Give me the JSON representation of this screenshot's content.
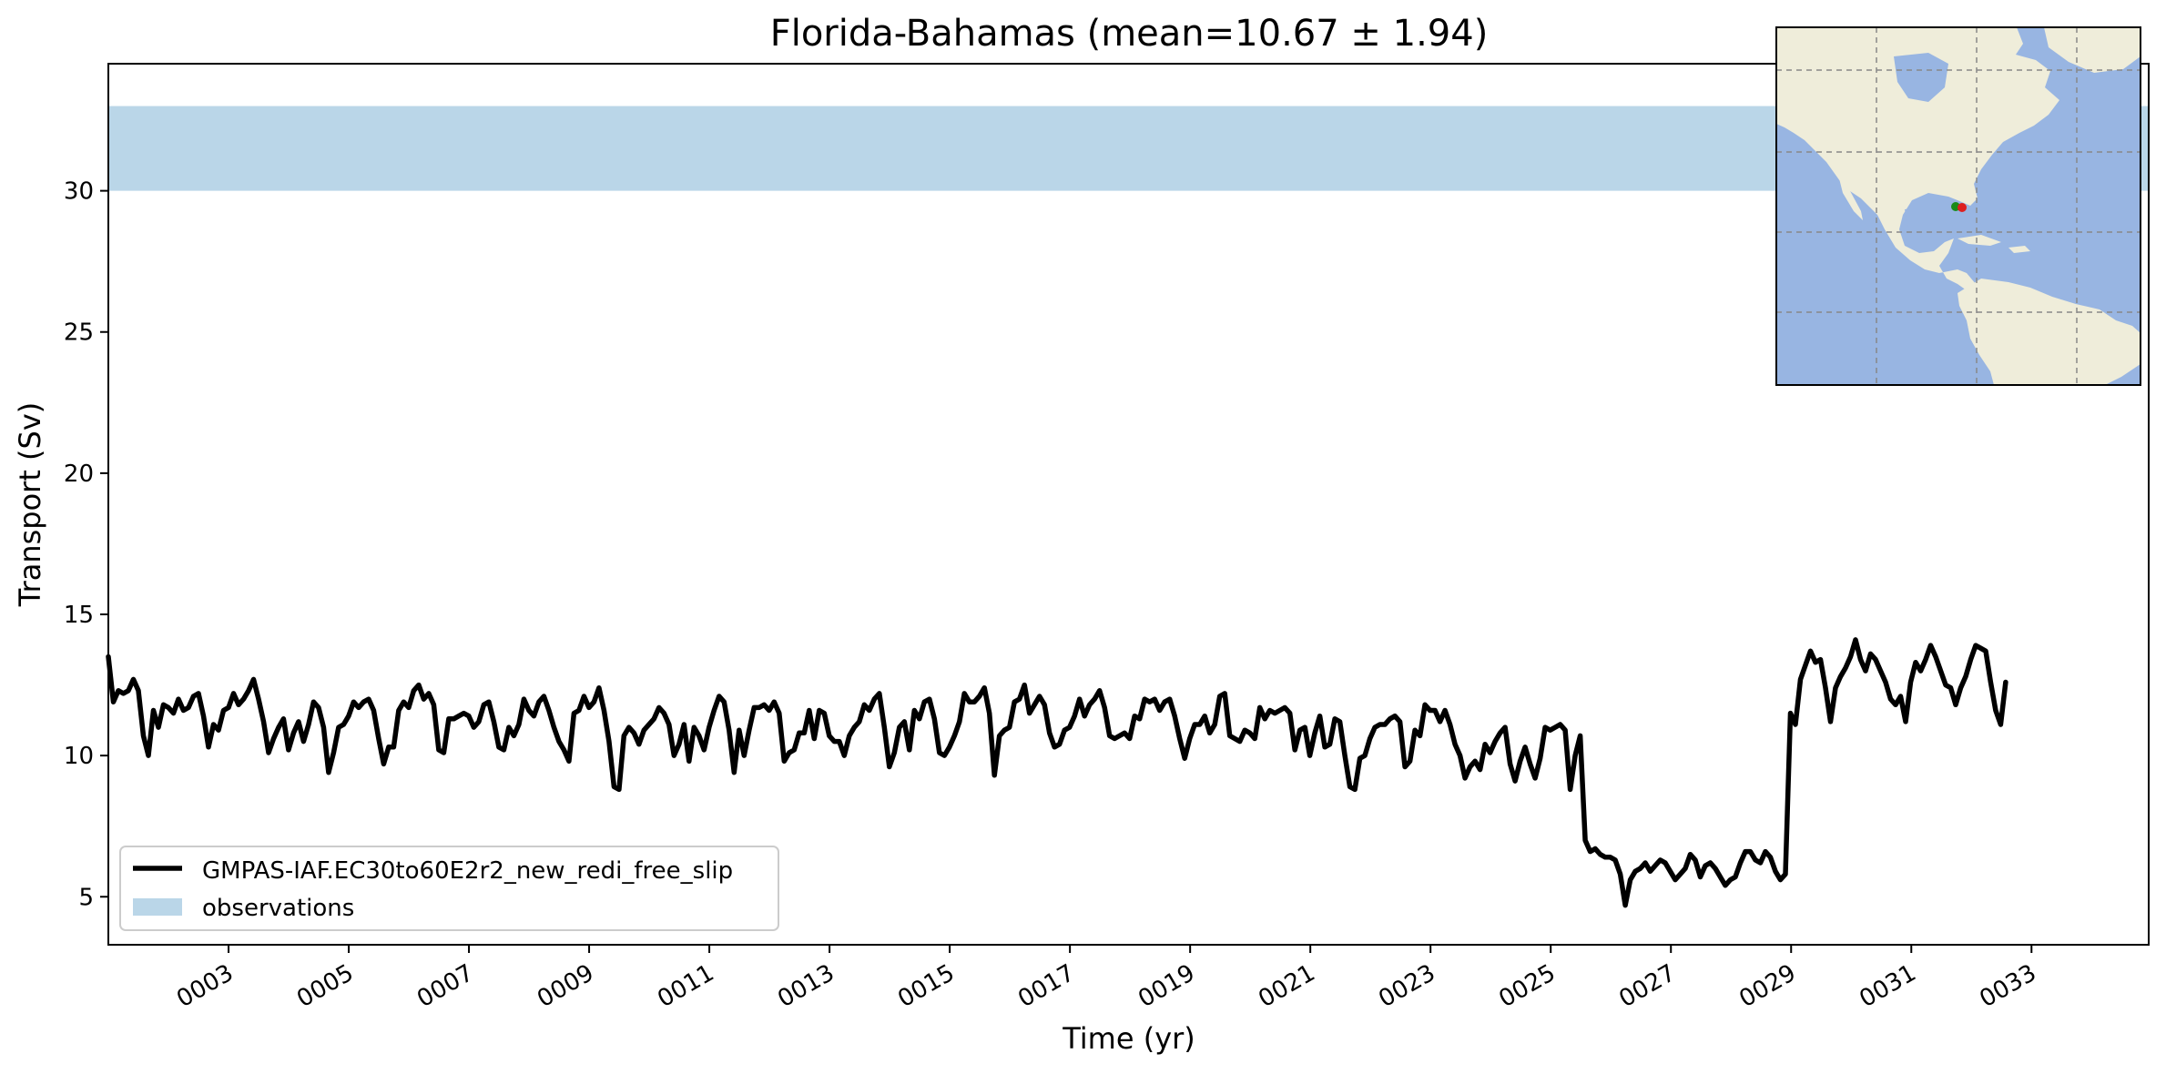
{
  "chart_data": {
    "type": "line",
    "title": "Florida-Bahamas (mean=10.67 ± 1.94)",
    "xlabel": "Time (yr)",
    "ylabel": "Transport (Sv)",
    "xlim": [
      1.0,
      34.95
    ],
    "ylim": [
      3.3,
      34.5
    ],
    "x_ticks": [
      3,
      5,
      7,
      9,
      11,
      13,
      15,
      17,
      19,
      21,
      23,
      25,
      27,
      29,
      31,
      33
    ],
    "x_tick_labels": [
      "0003",
      "0005",
      "0007",
      "0009",
      "0011",
      "0013",
      "0015",
      "0017",
      "0019",
      "0021",
      "0023",
      "0025",
      "0027",
      "0029",
      "0031",
      "0033"
    ],
    "y_ticks": [
      5,
      10,
      15,
      20,
      25,
      30
    ],
    "y_tick_labels": [
      "5",
      "10",
      "15",
      "20",
      "25",
      "30"
    ],
    "grid": false,
    "legend_position": "lower-left",
    "observations_band": {
      "name": "observations",
      "y_min": 30,
      "y_max": 33,
      "color": "#bad6e8"
    },
    "series": [
      {
        "name": "GMPAS-IAF.EC30to60E2r2_new_redi_free_slip",
        "color": "#000000",
        "x_start": 1.0,
        "x_step": 0.0833,
        "values": [
          13.5,
          11.9,
          12.3,
          12.2,
          12.3,
          12.7,
          12.3,
          10.7,
          10.0,
          11.6,
          11.0,
          11.8,
          11.7,
          11.5,
          12.0,
          11.6,
          11.7,
          12.1,
          12.2,
          11.4,
          10.3,
          11.1,
          10.9,
          11.6,
          11.7,
          12.2,
          11.8,
          12.0,
          12.3,
          12.7,
          12.0,
          11.2,
          10.1,
          10.6,
          11.0,
          11.3,
          10.2,
          10.8,
          11.2,
          10.5,
          11.1,
          11.9,
          11.7,
          11.0,
          9.4,
          10.1,
          11.0,
          11.1,
          11.4,
          11.9,
          11.7,
          11.9,
          12.0,
          11.6,
          10.6,
          9.7,
          10.3,
          10.3,
          11.6,
          11.9,
          11.7,
          12.3,
          12.5,
          12.0,
          12.2,
          11.8,
          10.2,
          10.1,
          11.3,
          11.3,
          11.4,
          11.5,
          11.4,
          11.0,
          11.2,
          11.8,
          11.9,
          11.2,
          10.3,
          10.2,
          11.0,
          10.7,
          11.1,
          12.0,
          11.6,
          11.4,
          11.9,
          12.1,
          11.6,
          11.0,
          10.5,
          10.2,
          9.8,
          11.5,
          11.6,
          12.1,
          11.7,
          11.9,
          12.4,
          11.6,
          10.5,
          8.9,
          8.8,
          10.7,
          11.0,
          10.8,
          10.4,
          10.9,
          11.1,
          11.3,
          11.7,
          11.5,
          11.1,
          10.0,
          10.4,
          11.1,
          9.8,
          11.0,
          10.7,
          10.2,
          11.0,
          11.6,
          12.1,
          11.9,
          10.9,
          9.4,
          10.9,
          10.0,
          10.9,
          11.7,
          11.7,
          11.8,
          11.6,
          11.9,
          11.5,
          9.8,
          10.1,
          10.2,
          10.8,
          10.8,
          11.6,
          10.6,
          11.6,
          11.5,
          10.7,
          10.5,
          10.5,
          10.0,
          10.7,
          11.0,
          11.2,
          11.8,
          11.6,
          12.0,
          12.2,
          11.0,
          9.6,
          10.1,
          11.0,
          11.2,
          10.2,
          11.6,
          11.3,
          11.9,
          12.0,
          11.3,
          10.1,
          10.0,
          10.3,
          10.7,
          11.2,
          12.2,
          11.9,
          11.9,
          12.1,
          12.4,
          11.5,
          9.3,
          10.7,
          10.9,
          11.0,
          11.9,
          12.0,
          12.5,
          11.5,
          11.8,
          12.1,
          11.8,
          10.8,
          10.3,
          10.4,
          10.9,
          11.0,
          11.4,
          12.0,
          11.4,
          11.8,
          12.0,
          12.3,
          11.7,
          10.7,
          10.6,
          10.7,
          10.8,
          10.6,
          11.4,
          11.3,
          12.0,
          11.9,
          12.0,
          11.6,
          11.9,
          12.0,
          11.4,
          10.6,
          9.9,
          10.6,
          11.1,
          11.1,
          11.4,
          10.8,
          11.1,
          12.1,
          12.2,
          10.7,
          10.6,
          10.5,
          10.9,
          10.8,
          10.6,
          11.7,
          11.3,
          11.6,
          11.5,
          11.6,
          11.7,
          11.5,
          10.2,
          10.9,
          11.0,
          10.0,
          10.8,
          11.4,
          10.3,
          10.4,
          11.3,
          11.2,
          10.0,
          8.9,
          8.8,
          9.9,
          10.0,
          10.6,
          11.0,
          11.1,
          11.1,
          11.3,
          11.4,
          11.2,
          9.6,
          9.8,
          10.9,
          10.7,
          11.8,
          11.6,
          11.6,
          11.2,
          11.6,
          11.1,
          10.4,
          10.0,
          9.2,
          9.6,
          9.8,
          9.5,
          10.4,
          10.1,
          10.5,
          10.8,
          11.0,
          9.7,
          9.1,
          9.8,
          10.3,
          9.7,
          9.2,
          9.9,
          11.0,
          10.9,
          11.0,
          11.1,
          10.9,
          8.8,
          10.0,
          10.7,
          7.0,
          6.6,
          6.7,
          6.5,
          6.4,
          6.4,
          6.3,
          5.8,
          4.7,
          5.6,
          5.9,
          6.0,
          6.2,
          5.9,
          6.1,
          6.3,
          6.2,
          5.9,
          5.6,
          5.8,
          6.0,
          6.5,
          6.3,
          5.7,
          6.1,
          6.2,
          6.0,
          5.7,
          5.4,
          5.6,
          5.7,
          6.2,
          6.6,
          6.6,
          6.3,
          6.2,
          6.6,
          6.4,
          5.9,
          5.6,
          5.8,
          11.5,
          11.1,
          12.7,
          13.2,
          13.7,
          13.3,
          13.4,
          12.4,
          11.2,
          12.4,
          12.8,
          13.1,
          13.5,
          14.1,
          13.4,
          13.0,
          13.6,
          13.4,
          13.0,
          12.6,
          12.0,
          11.8,
          12.1,
          11.2,
          12.6,
          13.3,
          13.0,
          13.4,
          13.9,
          13.5,
          13.0,
          12.5,
          12.4,
          11.8,
          12.4,
          12.8,
          13.4,
          13.9,
          13.8,
          13.7,
          12.6,
          11.6,
          11.1,
          12.6
        ]
      }
    ]
  },
  "inset_map": {
    "colors": {
      "ocean": "#98b5e2",
      "land": "#efedda",
      "marker_green": "#1a8a1a",
      "marker_red": "#dd1f1f"
    }
  }
}
